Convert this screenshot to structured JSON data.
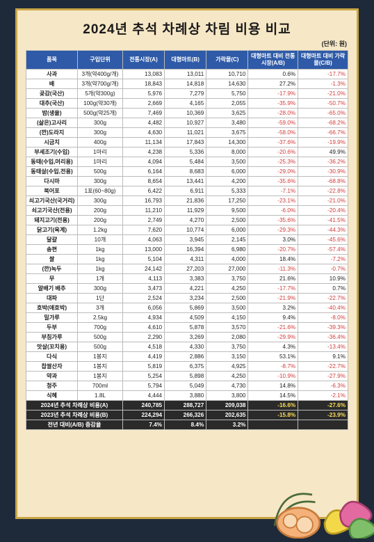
{
  "title": "2024년 추석 차례상 차림 비용 비교",
  "unit_label": "(단위: 원)",
  "columns": [
    "품목",
    "구입단위",
    "전통시장(A)",
    "대형마트(B)",
    "가락몰(C)",
    "대형마트 대비 전통시장(A/B)",
    "대형마트 대비 가락몰(C/B)"
  ],
  "rows": [
    {
      "name": "사과",
      "unit": "3개(약400g/개)",
      "a": "13,083",
      "b": "13,011",
      "c": "10,710",
      "ab": "0.6%",
      "cb": "-17.7%"
    },
    {
      "name": "배",
      "unit": "3개(약700g/개)",
      "a": "18,843",
      "b": "14,818",
      "c": "14,630",
      "ab": "27.2%",
      "cb": "-1.3%"
    },
    {
      "name": "곶감(국산)",
      "unit": "5개(약300g)",
      "a": "5,976",
      "b": "7,279",
      "c": "5,750",
      "ab": "-17.9%",
      "cb": "-21.0%"
    },
    {
      "name": "대추(국산)",
      "unit": "100g(약30개)",
      "a": "2,669",
      "b": "4,165",
      "c": "2,055",
      "ab": "-35.9%",
      "cb": "-50.7%"
    },
    {
      "name": "밤(생율)",
      "unit": "500g(약25개)",
      "a": "7,469",
      "b": "10,369",
      "c": "3,625",
      "ab": "-28.0%",
      "cb": "-65.0%"
    },
    {
      "name": "(삶은)고사리",
      "unit": "300g",
      "a": "4,482",
      "b": "10,927",
      "c": "3,480",
      "ab": "-59.0%",
      "cb": "-68.2%"
    },
    {
      "name": "(깐)도라지",
      "unit": "300g",
      "a": "4,630",
      "b": "11,021",
      "c": "3,675",
      "ab": "-58.0%",
      "cb": "-66.7%"
    },
    {
      "name": "시금치",
      "unit": "400g",
      "a": "11,134",
      "b": "17,843",
      "c": "14,300",
      "ab": "-37.6%",
      "cb": "-19.9%"
    },
    {
      "name": "부세조기(수입)",
      "unit": "1마리",
      "a": "4,238",
      "b": "5,336",
      "c": "8,000",
      "ab": "-20.6%",
      "cb": "49.9%"
    },
    {
      "name": "동태(수입,머리용)",
      "unit": "1마리",
      "a": "4,094",
      "b": "5,484",
      "c": "3,500",
      "ab": "-25.3%",
      "cb": "-36.2%"
    },
    {
      "name": "동태살(수입,전용)",
      "unit": "500g",
      "a": "6,164",
      "b": "8,683",
      "c": "6,000",
      "ab": "-29.0%",
      "cb": "-30.9%"
    },
    {
      "name": "다시마",
      "unit": "300g",
      "a": "8,654",
      "b": "13,441",
      "c": "4,200",
      "ab": "-35.6%",
      "cb": "-68.8%"
    },
    {
      "name": "북어포",
      "unit": "1포(60~80g)",
      "a": "6,422",
      "b": "6,911",
      "c": "5,333",
      "ab": "-7.1%",
      "cb": "-22.8%"
    },
    {
      "name": "쇠고기국산(국거리)",
      "unit": "300g",
      "a": "16,793",
      "b": "21,836",
      "c": "17,250",
      "ab": "-23.1%",
      "cb": "-21.0%"
    },
    {
      "name": "쇠고기국산(전용)",
      "unit": "200g",
      "a": "11,210",
      "b": "11,929",
      "c": "9,500",
      "ab": "-6.0%",
      "cb": "-20.4%"
    },
    {
      "name": "돼지고기(전용)",
      "unit": "200g",
      "a": "2,749",
      "b": "4,270",
      "c": "2,500",
      "ab": "-35.6%",
      "cb": "-41.5%"
    },
    {
      "name": "닭고기(육계)",
      "unit": "1.2kg",
      "a": "7,620",
      "b": "10,774",
      "c": "6,000",
      "ab": "-29.3%",
      "cb": "-44.3%"
    },
    {
      "name": "달걀",
      "unit": "10개",
      "a": "4,063",
      "b": "3,945",
      "c": "2,145",
      "ab": "3.0%",
      "cb": "-45.6%"
    },
    {
      "name": "송편",
      "unit": "1kg",
      "a": "13,000",
      "b": "16,394",
      "c": "6,980",
      "ab": "-20.7%",
      "cb": "-57.4%"
    },
    {
      "name": "쌀",
      "unit": "1kg",
      "a": "5,104",
      "b": "4,311",
      "c": "4,000",
      "ab": "18.4%",
      "cb": "-7.2%"
    },
    {
      "name": "(깐)녹두",
      "unit": "1kg",
      "a": "24,142",
      "b": "27,203",
      "c": "27,000",
      "ab": "-11.3%",
      "cb": "-0.7%"
    },
    {
      "name": "무",
      "unit": "1개",
      "a": "4,113",
      "b": "3,383",
      "c": "3,750",
      "ab": "21.6%",
      "cb": "10.9%"
    },
    {
      "name": "알배기 배추",
      "unit": "300g",
      "a": "3,473",
      "b": "4,221",
      "c": "4,250",
      "ab": "-17.7%",
      "cb": "0.7%"
    },
    {
      "name": "대파",
      "unit": "1단",
      "a": "2,524",
      "b": "3,234",
      "c": "2,500",
      "ab": "-21.9%",
      "cb": "-22.7%"
    },
    {
      "name": "호박(애호박)",
      "unit": "3개",
      "a": "6,056",
      "b": "5,869",
      "c": "3,500",
      "ab": "3.2%",
      "cb": "-40.4%"
    },
    {
      "name": "밀가루",
      "unit": "2.5kg",
      "a": "4,934",
      "b": "4,509",
      "c": "4,150",
      "ab": "9.4%",
      "cb": "-8.0%"
    },
    {
      "name": "두부",
      "unit": "700g",
      "a": "4,610",
      "b": "5,878",
      "c": "3,570",
      "ab": "-21.6%",
      "cb": "-39.3%"
    },
    {
      "name": "부침가루",
      "unit": "500g",
      "a": "2,290",
      "b": "3,269",
      "c": "2,080",
      "ab": "-29.9%",
      "cb": "-36.4%"
    },
    {
      "name": "맛살(꼬치용)",
      "unit": "500g",
      "a": "4,518",
      "b": "4,330",
      "c": "3,750",
      "ab": "4.3%",
      "cb": "-13.4%"
    },
    {
      "name": "다식",
      "unit": "1봉지",
      "a": "4,419",
      "b": "2,886",
      "c": "3,150",
      "ab": "53.1%",
      "cb": "9.1%"
    },
    {
      "name": "찹쌀산자",
      "unit": "1봉지",
      "a": "5,819",
      "b": "6,375",
      "c": "4,925",
      "ab": "-8.7%",
      "cb": "-22.7%"
    },
    {
      "name": "약과",
      "unit": "1봉지",
      "a": "5,254",
      "b": "5,898",
      "c": "4,250",
      "ab": "-10.9%",
      "cb": "-27.9%"
    },
    {
      "name": "청주",
      "unit": "700ml",
      "a": "5,794",
      "b": "5,049",
      "c": "4,730",
      "ab": "14.8%",
      "cb": "-6.3%"
    },
    {
      "name": "식혜",
      "unit": "1.8L",
      "a": "4,444",
      "b": "3,880",
      "c": "3,800",
      "ab": "14.5%",
      "cb": "-2.1%"
    }
  ],
  "footers": [
    {
      "label": "2024년 추석 차례상 비용(A)",
      "a": "240,785",
      "b": "288,727",
      "c": "209,038",
      "ab": "-16.6%",
      "cb": "-27.6%"
    },
    {
      "label": "2023년 추석 차례상 비용(B)",
      "a": "224,294",
      "b": "266,326",
      "c": "202,635",
      "ab": "-15.8%",
      "cb": "-23.9%"
    },
    {
      "label": "전년 대비(A/B) 증감율",
      "a": "7.4%",
      "b": "8.4%",
      "c": "3.2%",
      "ab": "",
      "cb": ""
    }
  ],
  "colors": {
    "sheet_bg": "#f6e7c6",
    "header_bg": "#2e5aa8",
    "footer_bg": "#2a2a2a",
    "accent": "#c9a646",
    "neg": "#d23b3b"
  }
}
